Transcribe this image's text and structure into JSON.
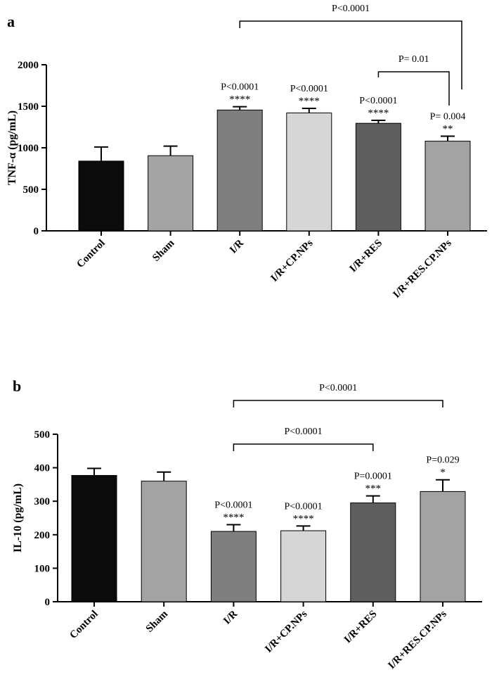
{
  "chart_data": [
    {
      "type": "bar",
      "panel": "a",
      "ylabel": "TNF-α (pg/mL)",
      "ylim": [
        0,
        2000
      ],
      "yticks": [
        "0",
        "500",
        "1000",
        "1500",
        "2000"
      ],
      "categories": [
        "Control",
        "Sham",
        "I/R",
        "I/R+CP.NPs",
        "I/R+RES",
        "I/R+RES.CP.NPs"
      ],
      "values": [
        840,
        905,
        1455,
        1420,
        1295,
        1080
      ],
      "errors": [
        170,
        115,
        40,
        55,
        35,
        60
      ],
      "colors": [
        "#0b0b0b",
        "#a3a3a3",
        "#7f7f7f",
        "#d6d6d6",
        "#5f5f5f",
        "#a3a3a3"
      ],
      "annotations": [
        {
          "category": "I/R",
          "pvalue": "P<0.0001",
          "stars": "****"
        },
        {
          "category": "I/R+CP.NPs",
          "pvalue": "P<0.0001",
          "stars": "****"
        },
        {
          "category": "I/R+RES",
          "pvalue": "P<0.0001",
          "stars": "****"
        },
        {
          "category": "I/R+RES.CP.NPs",
          "pvalue": "P= 0.004",
          "stars": "**"
        }
      ],
      "brackets": [
        {
          "from": "I/R",
          "to": "I/R+RES.CP.NPs",
          "label": "P<0.0001"
        },
        {
          "from": "I/R+RES",
          "to": "I/R+RES.CP.NPs",
          "label": "P= 0.01"
        }
      ]
    },
    {
      "type": "bar",
      "panel": "b",
      "ylabel": "IL-10 (pg/mL)",
      "ylim": [
        0,
        500
      ],
      "yticks": [
        "0",
        "100",
        "200",
        "300",
        "400",
        "500"
      ],
      "categories": [
        "Control",
        "Sham",
        "I/R",
        "I/R+CP.NPs",
        "I/R+RES",
        "I/R+RES.CP.NPs"
      ],
      "values": [
        377,
        360,
        210,
        212,
        295,
        329
      ],
      "errors": [
        21,
        27,
        20,
        14,
        21,
        35
      ],
      "colors": [
        "#0b0b0b",
        "#a3a3a3",
        "#7f7f7f",
        "#d6d6d6",
        "#5f5f5f",
        "#a3a3a3"
      ],
      "annotations": [
        {
          "category": "I/R",
          "pvalue": "P<0.0001",
          "stars": "****"
        },
        {
          "category": "I/R+CP.NPs",
          "pvalue": "P<0.0001",
          "stars": "****"
        },
        {
          "category": "I/R+RES",
          "pvalue": "P=0.0001",
          "stars": "***"
        },
        {
          "category": "I/R+RES.CP.NPs",
          "pvalue": "P=0.029",
          "stars": "*"
        }
      ],
      "brackets": [
        {
          "from": "I/R",
          "to": "I/R+RES.CP.NPs",
          "label": "P<0.0001"
        },
        {
          "from": "I/R",
          "to": "I/R+RES",
          "label": "P<0.0001"
        }
      ]
    }
  ]
}
